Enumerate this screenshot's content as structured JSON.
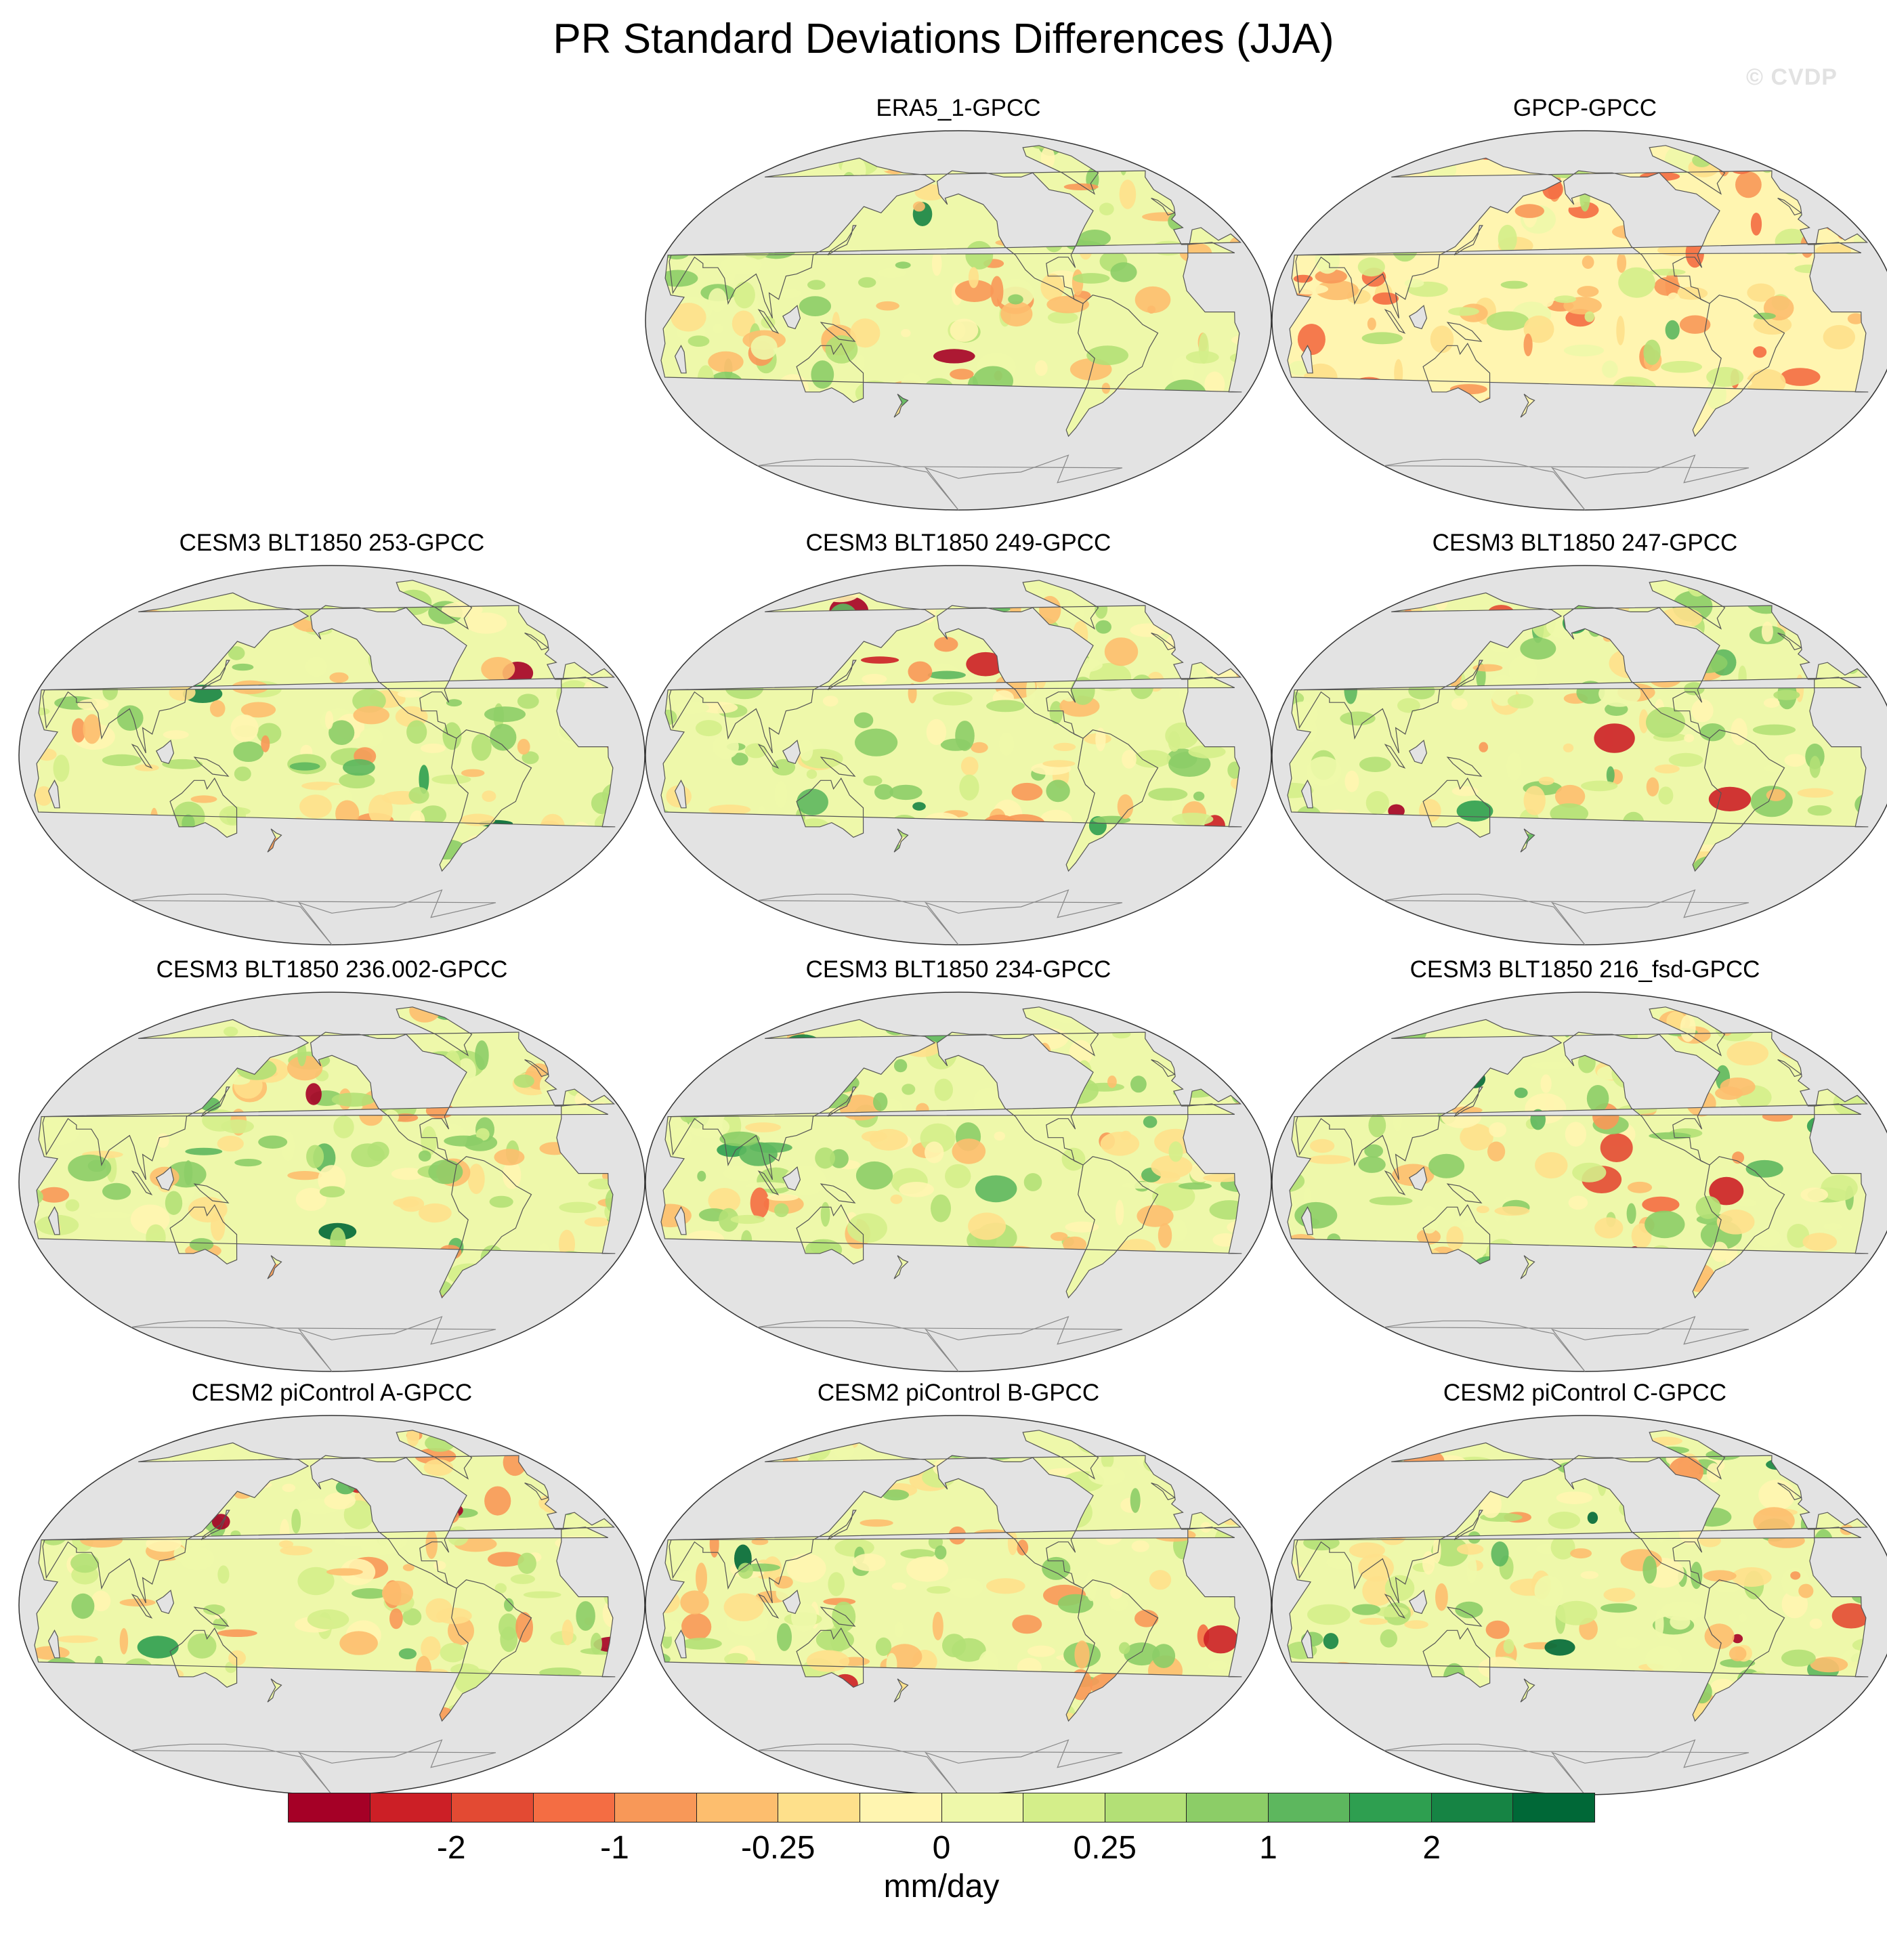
{
  "title": "PR Standard Deviations Differences (JJA)",
  "watermark": "© CVDP",
  "panels": [
    {
      "title": "ERA5_1-GPCC",
      "bias": 0.05,
      "seed": 11
    },
    {
      "title": "GPCP-GPCC",
      "bias": -0.25,
      "seed": 23
    },
    {
      "title": "CESM3 BLT1850 253-GPCC",
      "bias": 0.1,
      "seed": 37
    },
    {
      "title": "CESM3 BLT1850 249-GPCC",
      "bias": 0.12,
      "seed": 41
    },
    {
      "title": "CESM3 BLT1850 247-GPCC",
      "bias": 0.18,
      "seed": 53
    },
    {
      "title": "CESM3 BLT1850 236.002-GPCC",
      "bias": 0.1,
      "seed": 61
    },
    {
      "title": "CESM3 BLT1850 234-GPCC",
      "bias": 0.12,
      "seed": 73
    },
    {
      "title": "CESM3 BLT1850 216_fsd-GPCC",
      "bias": 0.15,
      "seed": 89
    },
    {
      "title": "CESM2 piControl A-GPCC",
      "bias": 0.05,
      "seed": 97
    },
    {
      "title": "CESM2 piControl B-GPCC",
      "bias": 0.05,
      "seed": 101
    },
    {
      "title": "CESM2 piControl C-GPCC",
      "bias": 0.08,
      "seed": 113
    }
  ],
  "colorbar": {
    "colors": [
      "#a50026",
      "#cc1f26",
      "#e34a33",
      "#f46d43",
      "#f89858",
      "#fdbe6e",
      "#fee08b",
      "#fff5b0",
      "#eef8aa",
      "#d4ee8a",
      "#b3e076",
      "#8ccd67",
      "#5db75e",
      "#2e9f50",
      "#168444",
      "#006837"
    ],
    "labels": [
      "-2",
      "-1",
      "-0.25",
      "0",
      "0.25",
      "1",
      "2"
    ],
    "label_positions": [
      2,
      4,
      6,
      8,
      10,
      12,
      14
    ],
    "unit": "mm/day"
  }
}
